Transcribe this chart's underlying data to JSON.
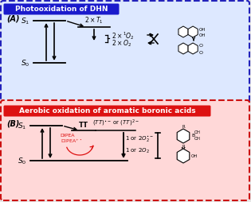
{
  "panel_A_title": "Photooxidation of DHN",
  "panel_B_title": "Aerobic oxidation of aromatic boronic acids",
  "label_A": "(A)",
  "label_B": "(B)",
  "fig_bg": "#e8e8e8",
  "panel_A_title_bg": "#1a1acc",
  "panel_A_title_color": "#ffffff",
  "panel_A_bg": "#dde8ff",
  "panel_B_title_bg": "#dd1111",
  "panel_B_title_color": "#ffffff",
  "panel_B_bg": "#ffd8d8",
  "box_A_border": "#2222bb",
  "box_B_border": "#cc1111",
  "arrow_color": "#000000",
  "red_color": "#dd1111"
}
